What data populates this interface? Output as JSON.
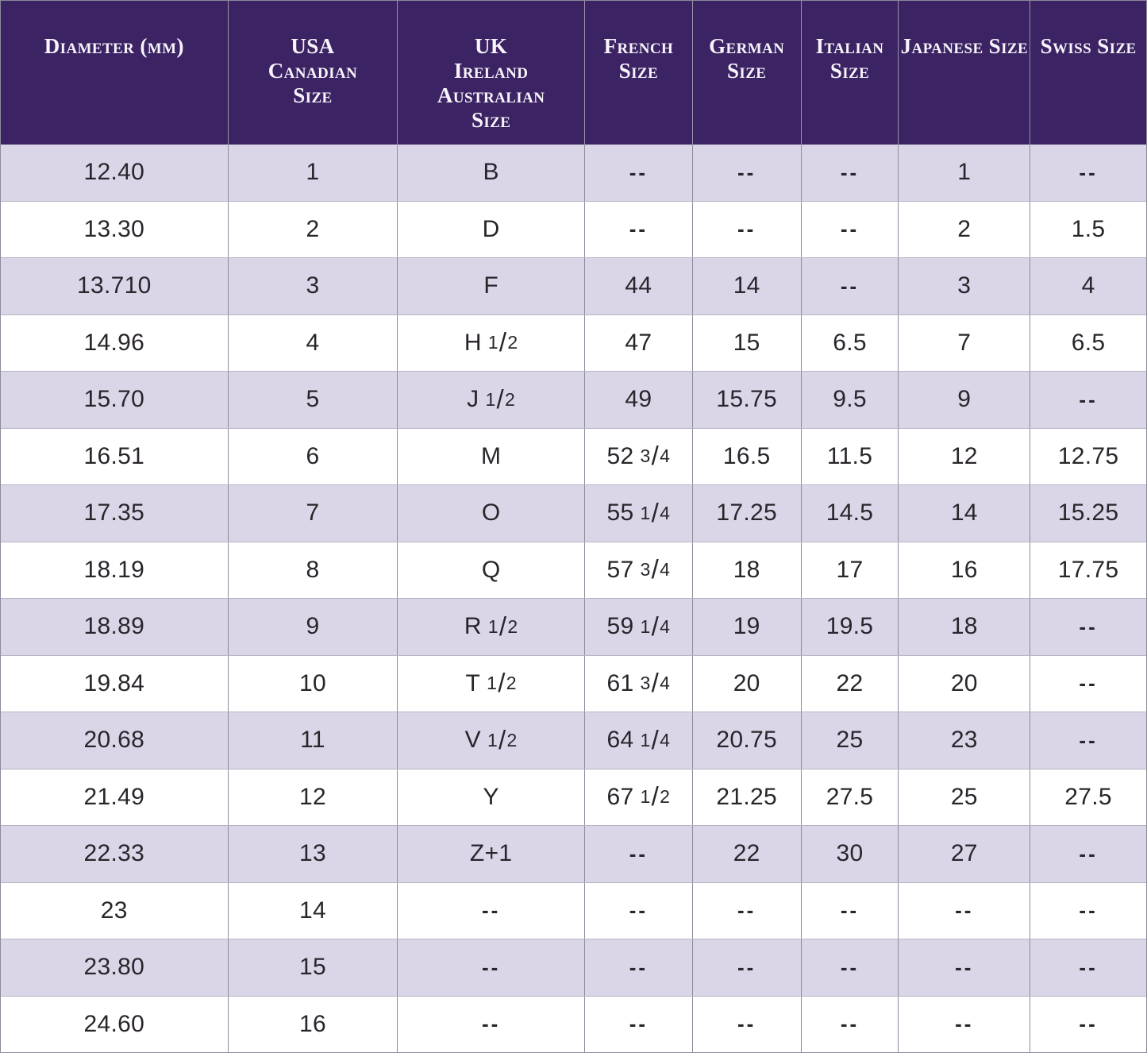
{
  "chart_data": {
    "type": "table",
    "title": "",
    "columns": [
      "Diameter (mm)",
      "USA Canadian Size",
      "UK Ireland Australian Size",
      "French Size",
      "German Size",
      "Italian Size",
      "Japanese Size",
      "Swiss Size"
    ],
    "rows": [
      [
        "12.40",
        "1",
        "B",
        "--",
        "--",
        "--",
        "1",
        "--"
      ],
      [
        "13.30",
        "2",
        "D",
        "--",
        "--",
        "--",
        "2",
        "1.5"
      ],
      [
        "13.710",
        "3",
        "F",
        "44",
        "14",
        "--",
        "3",
        "4"
      ],
      [
        "14.96",
        "4",
        "H 1/2",
        "47",
        "15",
        "6.5",
        "7",
        "6.5"
      ],
      [
        "15.70",
        "5",
        "J 1/2",
        "49",
        "15.75",
        "9.5",
        "9",
        "--"
      ],
      [
        "16.51",
        "6",
        "M",
        "52 3/4",
        "16.5",
        "11.5",
        "12",
        "12.75"
      ],
      [
        "17.35",
        "7",
        "O",
        "55 1/4",
        "17.25",
        "14.5",
        "14",
        "15.25"
      ],
      [
        "18.19",
        "8",
        "Q",
        "57 3/4",
        "18",
        "17",
        "16",
        "17.75"
      ],
      [
        "18.89",
        "9",
        "R 1/2",
        "59 1/4",
        "19",
        "19.5",
        "18",
        "--"
      ],
      [
        "19.84",
        "10",
        "T 1/2",
        "61 3/4",
        "20",
        "22",
        "20",
        "--"
      ],
      [
        "20.68",
        "11",
        "V 1/2",
        "64 1/4",
        "20.75",
        "25",
        "23",
        "--"
      ],
      [
        "21.49",
        "12",
        "Y",
        "67 1/2",
        "21.25",
        "27.5",
        "25",
        "27.5"
      ],
      [
        "22.33",
        "13",
        "Z+1",
        "--",
        "22",
        "30",
        "27",
        "--"
      ],
      [
        "23",
        "14",
        "--",
        "--",
        "--",
        "--",
        "--",
        "--"
      ],
      [
        "23.80",
        "15",
        "--",
        "--",
        "--",
        "--",
        "--",
        "--"
      ],
      [
        "24.60",
        "16",
        "--",
        "--",
        "--",
        "--",
        "--",
        "--"
      ]
    ]
  },
  "header": {
    "columns": [
      {
        "id": "diameter-mm",
        "lines": [
          "Diameter (mm)"
        ]
      },
      {
        "id": "usa-canadian-size",
        "lines": [
          "USA",
          "Canadian",
          "Size"
        ]
      },
      {
        "id": "uk-ireland-australian",
        "lines": [
          "UK",
          "Ireland",
          "Australian",
          "Size"
        ]
      },
      {
        "id": "french-size",
        "lines": [
          "French",
          "Size"
        ]
      },
      {
        "id": "german-size",
        "lines": [
          "German",
          "Size"
        ]
      },
      {
        "id": "italian-size",
        "lines": [
          "Italian",
          "Size"
        ]
      },
      {
        "id": "japanese-size",
        "lines": [
          "Japanese Size"
        ]
      },
      {
        "id": "swiss-size",
        "lines": [
          "Swiss Size"
        ]
      }
    ]
  },
  "na_marker": "--",
  "colors": {
    "header_bg": "#3c2363",
    "header_text": "#f7f4fb",
    "row_alt_bg": "#dbd5e8",
    "row_bg": "#ffffff",
    "grid_line_vertical": "#8d8a9b",
    "grid_line_vertical_header": "#9a95a8",
    "grid_line_horizontal": "#b7b3c4",
    "cell_text": "#29252b"
  }
}
